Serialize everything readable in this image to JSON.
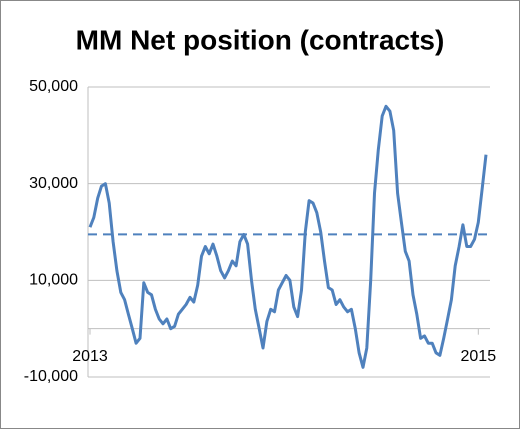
{
  "chart_data": {
    "type": "line",
    "title": "MM Net position (contracts)",
    "categories": [
      "2013",
      null,
      null,
      null,
      null,
      null,
      null,
      null,
      null,
      null,
      null,
      null,
      null,
      null,
      null,
      null,
      null,
      null,
      null,
      null,
      null,
      null,
      null,
      null,
      null,
      null,
      null,
      null,
      null,
      null,
      null,
      null,
      null,
      null,
      null,
      null,
      null,
      null,
      null,
      null,
      null,
      null,
      null,
      null,
      null,
      null,
      null,
      null,
      null,
      null,
      null,
      null,
      null,
      null,
      null,
      null,
      null,
      null,
      null,
      null,
      null,
      null,
      null,
      null,
      null,
      null,
      null,
      null,
      null,
      null,
      null,
      null,
      null,
      null,
      null,
      null,
      null,
      null,
      null,
      null,
      null,
      null,
      null,
      null,
      null,
      null,
      null,
      null,
      null,
      null,
      null,
      null,
      null,
      null,
      null,
      null,
      null,
      null,
      null,
      null,
      null,
      "2015",
      null,
      null
    ],
    "values": [
      21000,
      23000,
      27000,
      29500,
      30000,
      26000,
      18000,
      12000,
      7500,
      6000,
      3000,
      0,
      -3000,
      -2000,
      9500,
      7500,
      7000,
      4000,
      2000,
      1000,
      2000,
      0,
      500,
      3000,
      4000,
      5000,
      6500,
      5500,
      9000,
      15000,
      17000,
      15500,
      17500,
      15000,
      12000,
      10500,
      12000,
      14000,
      13000,
      18000,
      19500,
      17500,
      10000,
      4000,
      0,
      -4000,
      1500,
      4000,
      3500,
      8000,
      9500,
      11000,
      10000,
      4500,
      2500,
      8000,
      20000,
      26500,
      26000,
      24000,
      20000,
      14000,
      8500,
      8000,
      5000,
      6000,
      4500,
      3500,
      4000,
      0,
      -5000,
      -8000,
      -4000,
      10000,
      28000,
      37000,
      44000,
      46000,
      45000,
      41000,
      28000,
      22000,
      16000,
      14000,
      7000,
      3000,
      -2000,
      -1500,
      -3000,
      -3000,
      -5000,
      -5500,
      -2000,
      2000,
      6000,
      13000,
      17000,
      21500,
      17000,
      17000,
      18500,
      22000,
      29000,
      36000
    ],
    "color": "#4f81bd",
    "reference_line": {
      "value": 19500,
      "style": "dashed"
    },
    "ylim": [
      -10000,
      50000
    ],
    "yticks": [
      {
        "value": -10000,
        "label": "-10,000"
      },
      {
        "value": 10000,
        "label": "10,000"
      },
      {
        "value": 30000,
        "label": "30,000"
      },
      {
        "value": 50000,
        "label": "50,000"
      }
    ],
    "grid": true
  }
}
